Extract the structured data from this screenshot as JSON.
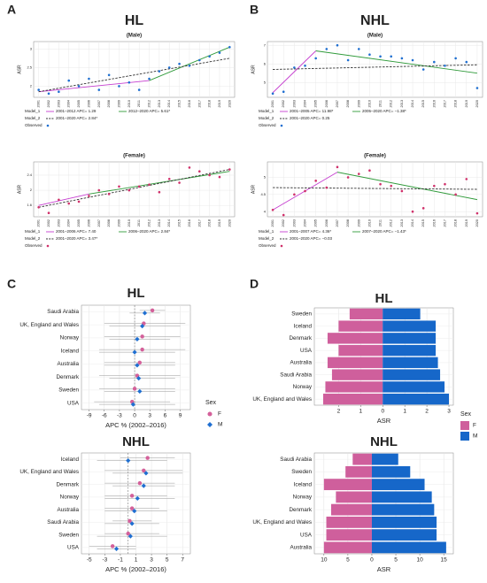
{
  "panels": [
    "A",
    "B",
    "C",
    "D"
  ],
  "chart_data": [
    {
      "type": "line",
      "title": "HL",
      "subtitle": "(Male)",
      "y_label": "ASR",
      "grid": true,
      "x": [
        2001,
        2002,
        2003,
        2004,
        2005,
        2006,
        2007,
        2008,
        2009,
        2010,
        2011,
        2012,
        2013,
        2014,
        2015,
        2016,
        2017,
        2018,
        2019,
        2020
      ],
      "xticks": [
        2001,
        2002,
        2003,
        2004,
        2005,
        2006,
        2007,
        2008,
        2009,
        2010,
        2011,
        2012,
        2013,
        2014,
        2015,
        2016,
        2017,
        2018,
        2019,
        2020
      ],
      "xlim": [
        2000.5,
        2020.5
      ],
      "ylim": [
        1.7,
        3.2
      ],
      "yticks": [
        2.0,
        2.5,
        3.0
      ],
      "observed": {
        "name": "Observed",
        "color": "#1f6fd1",
        "values": [
          1.9,
          1.8,
          1.85,
          2.15,
          2.0,
          2.2,
          1.9,
          2.3,
          2.0,
          2.1,
          1.9,
          2.2,
          2.4,
          2.5,
          2.6,
          2.55,
          2.7,
          2.8,
          2.9,
          3.05
        ]
      },
      "models": [
        {
          "name": "Model_1",
          "dashed": false,
          "segments": [
            {
              "name": "2001–2012 APC= 1.29",
              "color": "#c63fd0",
              "x": [
                2001,
                2012
              ],
              "values": [
                1.85,
                2.15
              ]
            },
            {
              "name": "2012–2020 APC= 5.61*",
              "color": "#2f9a3a",
              "x": [
                2012,
                2020
              ],
              "values": [
                2.15,
                3.05
              ]
            }
          ]
        },
        {
          "name": "Model_2",
          "dashed": true,
          "segments": [
            {
              "name": "2001–2020 APC= 2.84*",
              "color": "#333333",
              "x": [
                2001,
                2020
              ],
              "values": [
                1.85,
                2.75
              ]
            }
          ]
        }
      ]
    },
    {
      "type": "line",
      "subtitle": "(Female)",
      "y_label": "ASR",
      "grid": true,
      "x": [
        2001,
        2002,
        2003,
        2004,
        2005,
        2006,
        2007,
        2008,
        2009,
        2010,
        2011,
        2012,
        2013,
        2014,
        2015,
        2016,
        2017,
        2018,
        2019,
        2020
      ],
      "xticks": [
        2001,
        2002,
        2003,
        2004,
        2005,
        2006,
        2007,
        2008,
        2009,
        2010,
        2011,
        2012,
        2013,
        2014,
        2015,
        2016,
        2017,
        2018,
        2019,
        2020
      ],
      "xlim": [
        2000.5,
        2020.5
      ],
      "ylim": [
        1.3,
        2.75
      ],
      "yticks": [
        1.6,
        2.0,
        2.4
      ],
      "observed": {
        "name": "Observed",
        "color": "#d0306a",
        "values": [
          1.55,
          1.4,
          1.75,
          1.65,
          1.7,
          1.85,
          2.0,
          1.9,
          2.1,
          2.0,
          2.1,
          2.15,
          1.95,
          2.3,
          2.2,
          2.6,
          2.5,
          2.4,
          2.35,
          2.55
        ]
      },
      "models": [
        {
          "name": "Model_1",
          "dashed": false,
          "segments": [
            {
              "name": "2001–2006 APC= 7.40",
              "color": "#c63fd0",
              "x": [
                2001,
                2006
              ],
              "values": [
                1.6,
                1.9
              ]
            },
            {
              "name": "2006–2020 APC= 2.84*",
              "color": "#2f9a3a",
              "x": [
                2006,
                2020
              ],
              "values": [
                1.9,
                2.5
              ]
            }
          ]
        },
        {
          "name": "Model_2",
          "dashed": true,
          "segments": [
            {
              "name": "2001–2020 APC= 3.47*",
              "color": "#333333",
              "x": [
                2001,
                2020
              ],
              "values": [
                1.55,
                2.55
              ]
            }
          ]
        }
      ]
    },
    {
      "type": "line",
      "title": "NHL",
      "subtitle": "(Male)",
      "y_label": "ASR",
      "grid": true,
      "x": [
        2001,
        2002,
        2003,
        2004,
        2005,
        2006,
        2007,
        2008,
        2009,
        2010,
        2011,
        2012,
        2013,
        2014,
        2015,
        2016,
        2017,
        2018,
        2019,
        2020
      ],
      "xticks": [
        2001,
        2002,
        2003,
        2004,
        2005,
        2006,
        2007,
        2008,
        2009,
        2010,
        2011,
        2012,
        2013,
        2014,
        2015,
        2016,
        2017,
        2018,
        2019,
        2020
      ],
      "xlim": [
        2000.5,
        2020.5
      ],
      "ylim": [
        4.2,
        7.2
      ],
      "yticks": [
        5,
        6,
        7
      ],
      "observed": {
        "name": "Observed",
        "color": "#1f6fd1",
        "values": [
          4.4,
          4.5,
          5.8,
          5.9,
          6.3,
          6.8,
          7.0,
          6.2,
          6.8,
          6.5,
          6.4,
          6.4,
          6.3,
          6.2,
          5.7,
          6.1,
          5.9,
          6.3,
          6.1,
          4.7
        ]
      },
      "models": [
        {
          "name": "Model_1",
          "dashed": false,
          "segments": [
            {
              "name": "2001–2005 APC= 11.98*",
              "color": "#c63fd0",
              "x": [
                2001,
                2005
              ],
              "values": [
                4.45,
                6.7
              ]
            },
            {
              "name": "2005–2020 APC= −1.38*",
              "color": "#2f9a3a",
              "x": [
                2005,
                2020
              ],
              "values": [
                6.7,
                5.5
              ]
            }
          ]
        },
        {
          "name": "Model_2",
          "dashed": true,
          "segments": [
            {
              "name": "2001–2020 APC= 0.25",
              "color": "#333333",
              "x": [
                2001,
                2020
              ],
              "values": [
                5.7,
                5.95
              ]
            }
          ]
        }
      ]
    },
    {
      "type": "line",
      "subtitle": "(Female)",
      "y_label": "ASR",
      "grid": true,
      "x": [
        2001,
        2002,
        2003,
        2004,
        2005,
        2006,
        2007,
        2008,
        2009,
        2010,
        2011,
        2012,
        2013,
        2014,
        2015,
        2016,
        2017,
        2018,
        2019,
        2020
      ],
      "xticks": [
        2001,
        2002,
        2003,
        2004,
        2005,
        2006,
        2007,
        2008,
        2009,
        2010,
        2011,
        2012,
        2013,
        2014,
        2015,
        2016,
        2017,
        2018,
        2019,
        2020
      ],
      "xlim": [
        2000.5,
        2020.5
      ],
      "ylim": [
        3.85,
        5.45
      ],
      "yticks": [
        4.0,
        4.5,
        5.0
      ],
      "observed": {
        "name": "Observed",
        "color": "#d0306a",
        "values": [
          4.05,
          3.9,
          4.5,
          4.6,
          4.9,
          4.7,
          5.3,
          5.0,
          5.1,
          5.2,
          4.8,
          4.75,
          4.6,
          4.0,
          4.1,
          4.75,
          4.8,
          4.5,
          4.95,
          3.95
        ]
      },
      "models": [
        {
          "name": "Model_1",
          "dashed": false,
          "segments": [
            {
              "name": "2001–2007 APC= 4.36*",
              "color": "#c63fd0",
              "x": [
                2001,
                2007
              ],
              "values": [
                4.05,
                5.15
              ]
            },
            {
              "name": "2007–2020 APC= −1.43*",
              "color": "#2f9a3a",
              "x": [
                2007,
                2020
              ],
              "values": [
                5.15,
                4.35
              ]
            }
          ]
        },
        {
          "name": "Model_2",
          "dashed": true,
          "segments": [
            {
              "name": "2001–2020 APC= −0.03",
              "color": "#333333",
              "x": [
                2001,
                2020
              ],
              "values": [
                4.7,
                4.65
              ]
            }
          ]
        }
      ]
    },
    {
      "type": "forest",
      "title": "HL",
      "x_label": "APC % (2002–2016)",
      "legend_title": "Sex",
      "grid": true,
      "categories": [
        "Saudi Arabia",
        "UK, England and Wales",
        "Norway",
        "Iceland",
        "Australia",
        "Denmark",
        "Sweden",
        "USA"
      ],
      "xlim": [
        -10.5,
        11
      ],
      "xticks": [
        -9,
        -6,
        -3,
        0,
        3,
        6,
        9
      ],
      "series": [
        {
          "name": "F",
          "color": "#d4609a",
          "shape": "circle",
          "values": [
            3.5,
            1.8,
            1.5,
            1.5,
            1.0,
            0.5,
            0,
            -0.5
          ],
          "lower": [
            1,
            -6,
            -6,
            -7,
            -6,
            -7,
            -7,
            -8
          ],
          "upper": [
            6,
            10,
            9,
            10,
            8,
            9,
            8,
            7
          ]
        },
        {
          "name": "M",
          "color": "#1f6fd1",
          "shape": "diamond",
          "values": [
            2.0,
            1.5,
            0.5,
            0,
            0.5,
            0.8,
            1.0,
            -0.3
          ],
          "lower": [
            -1,
            -5,
            -5,
            -7,
            -6,
            -5,
            -6,
            -7
          ],
          "upper": [
            5,
            9,
            7,
            8,
            8,
            8,
            8,
            8
          ]
        }
      ]
    },
    {
      "type": "forest",
      "title": "NHL",
      "x_label": "APC % (2002–2016)",
      "grid": true,
      "categories": [
        "Iceland",
        "UK, England and Wales",
        "Denmark",
        "Norway",
        "Australia",
        "Saudi Arabia",
        "Sweden",
        "USA"
      ],
      "xlim": [
        -6,
        8
      ],
      "xticks": [
        -5,
        -3,
        -1,
        1,
        3,
        5,
        7
      ],
      "series": [
        {
          "color": "#d4609a",
          "shape": "circle",
          "values": [
            2.5,
            2.0,
            1.5,
            0.5,
            0.5,
            0.2,
            0,
            -2
          ],
          "lower": [
            -1,
            -3,
            -3,
            -3,
            -3,
            -2,
            -3,
            -5
          ],
          "upper": [
            6,
            7,
            6,
            5,
            4,
            3,
            4,
            1
          ]
        },
        {
          "color": "#1f6fd1",
          "shape": "diamond",
          "values": [
            0,
            2.3,
            2.0,
            1.2,
            0.8,
            0.5,
            0.3,
            -1.5
          ],
          "lower": [
            -4,
            -2,
            -2,
            -3,
            -3,
            -3,
            -4,
            -4
          ],
          "upper": [
            5,
            7,
            6,
            6,
            5,
            4,
            5,
            1
          ]
        }
      ]
    },
    {
      "type": "pyramid",
      "title": "HL",
      "x_label": "ASR",
      "legend_title": "Sex",
      "grid": true,
      "categories": [
        "Sweden",
        "Iceland",
        "Denmark",
        "USA",
        "Australia",
        "Saudi Arabia",
        "Norway",
        "UK, England and Wales"
      ],
      "xlim": [
        -3.1,
        3.2
      ],
      "xticks": [
        {
          "value": -2,
          "label": "2"
        },
        {
          "value": -1,
          "label": "1"
        },
        0,
        1,
        2,
        3
      ],
      "series": [
        {
          "name": "F",
          "color": "#cf5f9c",
          "side": "left",
          "values": [
            1.5,
            2.0,
            2.5,
            2.0,
            2.5,
            2.3,
            2.6,
            2.7
          ]
        },
        {
          "name": "M",
          "color": "#1667c9",
          "side": "right",
          "values": [
            1.7,
            2.4,
            2.4,
            2.4,
            2.5,
            2.6,
            2.8,
            3.0
          ]
        }
      ]
    },
    {
      "type": "pyramid",
      "title": "NHL",
      "x_label": "ASR",
      "grid": true,
      "categories": [
        "Saudi Arabia",
        "Sweden",
        "Iceland",
        "Norway",
        "Denmark",
        "UK, England and Wales",
        "USA",
        "Australia"
      ],
      "xlim": [
        -12,
        17
      ],
      "xticks": [
        {
          "value": -10,
          "label": "10"
        },
        {
          "value": -5,
          "label": "5"
        },
        0,
        5,
        10,
        15
      ],
      "series": [
        {
          "color": "#cf5f9c",
          "side": "left",
          "values": [
            4,
            5.5,
            10,
            7.5,
            8.5,
            9.5,
            9.5,
            10
          ]
        },
        {
          "color": "#1667c9",
          "side": "right",
          "values": [
            5.5,
            8,
            11,
            12.5,
            13,
            13.5,
            13.5,
            15.5
          ]
        }
      ]
    }
  ]
}
